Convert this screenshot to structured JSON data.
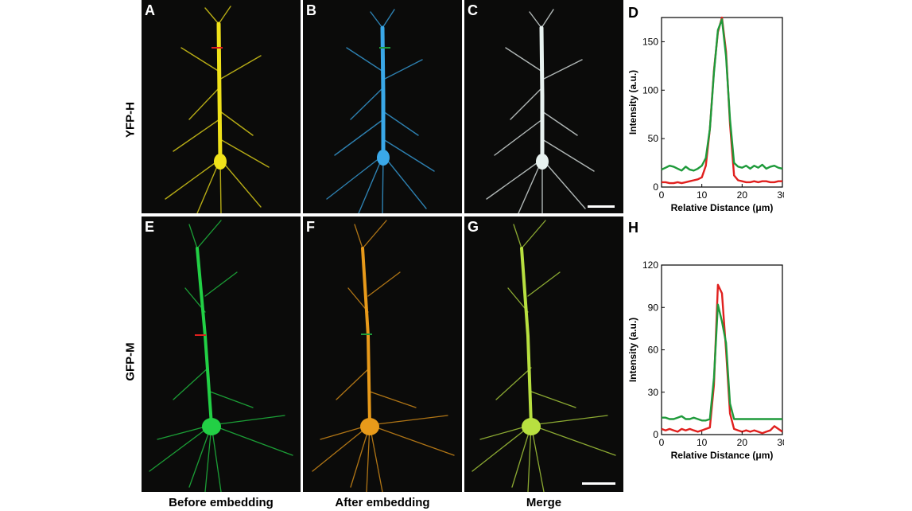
{
  "row_labels": [
    "YFP-H",
    "GFP-M"
  ],
  "column_labels": [
    "Before embedding",
    "After embedding",
    "Merge"
  ],
  "panels": [
    {
      "id": "A",
      "color": "#f0e21a"
    },
    {
      "id": "B",
      "color": "#3aa8e8"
    },
    {
      "id": "C",
      "color": "#e8f2f0"
    },
    {
      "id": "E",
      "color": "#22d045"
    },
    {
      "id": "F",
      "color": "#e89a1a"
    },
    {
      "id": "G",
      "color": "#b8e040"
    }
  ],
  "colors": {
    "line_red": "#e0201e",
    "line_green": "#1e9a3a",
    "background": "#0b0b0a"
  },
  "chart_data": [
    {
      "id": "D",
      "type": "line",
      "xlabel": "Relative Distance (μm)",
      "ylabel": "Intensity (a.u.)",
      "xlim": [
        0,
        30
      ],
      "ylim": [
        0,
        175
      ],
      "xticks": [
        0,
        10,
        20,
        30
      ],
      "yticks": [
        0,
        50,
        100,
        150
      ],
      "series": [
        {
          "color": "#e0201e",
          "x": [
            0,
            1,
            2,
            3,
            4,
            5,
            6,
            7,
            8,
            9,
            10,
            11,
            12,
            13,
            14,
            15,
            16,
            17,
            18,
            19,
            20,
            21,
            22,
            23,
            24,
            25,
            26,
            27,
            28,
            29,
            30
          ],
          "y": [
            5,
            5,
            4,
            4,
            5,
            4,
            5,
            6,
            7,
            8,
            10,
            22,
            60,
            120,
            160,
            175,
            140,
            65,
            12,
            7,
            6,
            5,
            5,
            6,
            5,
            6,
            6,
            5,
            5,
            6,
            6
          ]
        },
        {
          "color": "#1e9a3a",
          "x": [
            0,
            1,
            2,
            3,
            4,
            5,
            6,
            7,
            8,
            9,
            10,
            11,
            12,
            13,
            14,
            15,
            16,
            17,
            18,
            19,
            20,
            21,
            22,
            23,
            24,
            25,
            26,
            27,
            28,
            29,
            30
          ],
          "y": [
            18,
            20,
            22,
            21,
            19,
            17,
            21,
            18,
            17,
            19,
            22,
            30,
            60,
            118,
            162,
            173,
            135,
            70,
            25,
            21,
            20,
            22,
            19,
            22,
            20,
            23,
            19,
            21,
            22,
            20,
            19
          ]
        }
      ]
    },
    {
      "id": "H",
      "type": "line",
      "xlabel": "Relative Distance (μm)",
      "ylabel": "Intensity (a.u.)",
      "xlim": [
        0,
        30
      ],
      "ylim": [
        0,
        120
      ],
      "xticks": [
        0,
        10,
        20,
        30
      ],
      "yticks": [
        0,
        30,
        60,
        90,
        120
      ],
      "series": [
        {
          "color": "#e0201e",
          "x": [
            0,
            1,
            2,
            3,
            4,
            5,
            6,
            7,
            8,
            9,
            10,
            11,
            12,
            13,
            14,
            15,
            16,
            17,
            18,
            19,
            20,
            21,
            22,
            23,
            24,
            25,
            26,
            27,
            28,
            29,
            30
          ],
          "y": [
            4,
            3,
            4,
            3,
            2,
            4,
            3,
            4,
            3,
            2,
            3,
            4,
            5,
            35,
            106,
            100,
            60,
            15,
            4,
            3,
            2,
            3,
            2,
            3,
            2,
            1,
            2,
            3,
            6,
            4,
            2
          ]
        },
        {
          "color": "#1e9a3a",
          "x": [
            0,
            1,
            2,
            3,
            4,
            5,
            6,
            7,
            8,
            9,
            10,
            11,
            12,
            13,
            14,
            15,
            16,
            17,
            18,
            19,
            20,
            21,
            22,
            23,
            24,
            25,
            26,
            27,
            28,
            29,
            30
          ],
          "y": [
            12,
            12,
            11,
            11,
            12,
            13,
            11,
            11,
            12,
            11,
            10,
            10,
            11,
            40,
            92,
            80,
            65,
            22,
            11,
            11,
            11,
            11,
            11,
            11,
            11,
            11,
            11,
            11,
            11,
            11,
            11
          ]
        }
      ]
    }
  ]
}
